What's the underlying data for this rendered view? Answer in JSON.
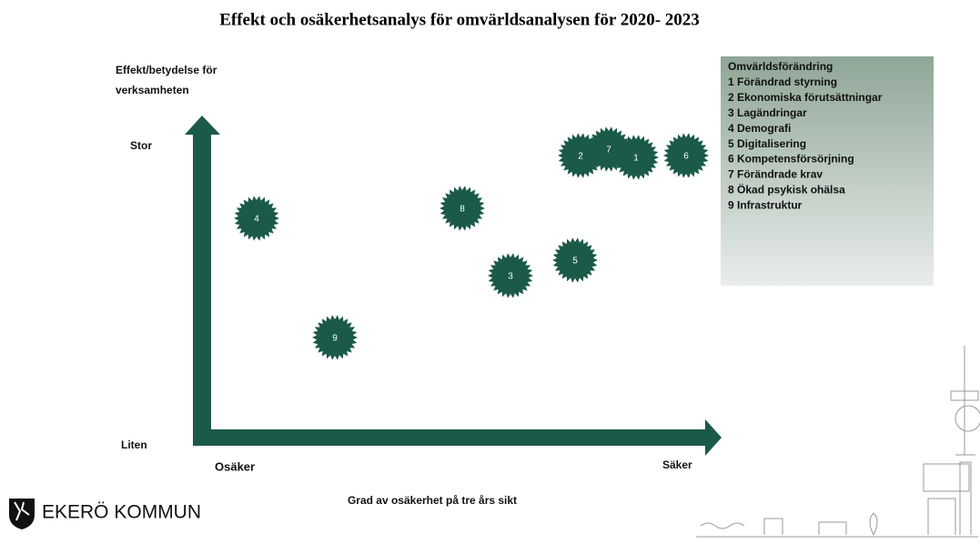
{
  "title": "Effekt och osäkerhetsanalys för omvärldsanalysen för 2020- 2023",
  "axes": {
    "y_label": "Effekt/betydelse för verksamheten",
    "y_high": "Stor",
    "y_low": "Liten",
    "x_low": "Osäker",
    "x_high": "Säker",
    "x_label": "Grad av osäkerhet på tre års sikt"
  },
  "nodes": [
    {
      "label": "1"
    },
    {
      "label": "2"
    },
    {
      "label": "3"
    },
    {
      "label": "4"
    },
    {
      "label": "5"
    },
    {
      "label": "6"
    },
    {
      "label": "7"
    },
    {
      "label": "8"
    },
    {
      "label": "9"
    }
  ],
  "legend": {
    "title": "Omvärldsförändring",
    "items": [
      "1 Förändrad styrning",
      "2 Ekonomiska förutsättningar",
      "3 Lagändringar",
      "4 Demografi",
      "5 Digitalisering",
      "6 Kompetensförsörjning",
      "7 Förändrade krav",
      "8 Ökad psykisk ohälsa",
      "9 Infrastruktur"
    ]
  },
  "logo": "EKERÖ KOMMUN"
}
